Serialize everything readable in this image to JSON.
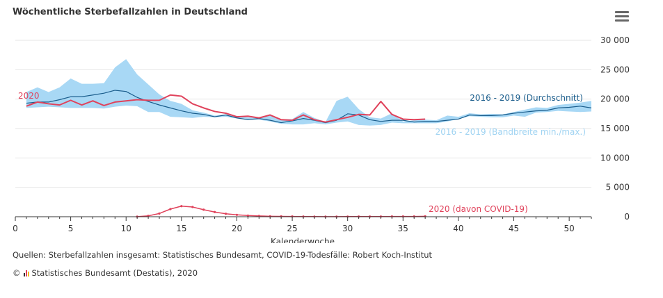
{
  "header": {
    "title": "Wöchentliche Sterbefallzahlen in Deutschland",
    "menu_icon": "hamburger-menu-icon"
  },
  "footer": {
    "source": "Quellen: Sterbefallzahlen insgesamt: Statistisches Bundesamt, COVID-19-Todesfälle: Robert Koch-Institut",
    "copyright_symbol": "©",
    "copyright_text": "Statistisches Bundesamt (Destatis), 2020",
    "logo_icon": "destatis-logo-icon"
  },
  "colors": {
    "series_2020": "#e0425b",
    "average": "#1a5d8c",
    "band": "#a8d8f5",
    "band_label": "#9fd3f2"
  },
  "chart_data": {
    "type": "line",
    "title": "Wöchentliche Sterbefallzahlen in Deutschland",
    "xlabel": "Kalenderwoche",
    "ylabel": "",
    "xlim": [
      0,
      52
    ],
    "ylim": [
      0,
      30000
    ],
    "xticks": [
      0,
      5,
      10,
      15,
      20,
      25,
      30,
      35,
      40,
      45,
      50
    ],
    "yticks": [
      0,
      5000,
      10000,
      15000,
      20000,
      25000,
      30000
    ],
    "ytick_labels": [
      "0",
      "5 000",
      "10 000",
      "15 000",
      "20 000",
      "25 000",
      "30 000"
    ],
    "yaxis_side": "right",
    "grid": "horizontal",
    "band": {
      "name": "2016 - 2019 (Bandbreite min./max.)",
      "x": [
        1,
        2,
        3,
        4,
        5,
        6,
        7,
        8,
        9,
        10,
        11,
        12,
        13,
        14,
        15,
        16,
        17,
        18,
        19,
        20,
        21,
        22,
        23,
        24,
        25,
        26,
        27,
        28,
        29,
        30,
        31,
        32,
        33,
        34,
        35,
        36,
        37,
        38,
        39,
        40,
        41,
        42,
        43,
        44,
        45,
        46,
        47,
        48,
        49,
        50,
        51,
        52
      ],
      "high": [
        21200,
        22000,
        21200,
        22000,
        23500,
        22600,
        22600,
        22700,
        25400,
        26800,
        24200,
        22500,
        20800,
        19700,
        19200,
        18100,
        17700,
        17200,
        17400,
        17100,
        16900,
        16800,
        17200,
        16600,
        16600,
        17800,
        16800,
        16100,
        19700,
        20400,
        18300,
        16900,
        16700,
        17600,
        16200,
        16400,
        16500,
        16400,
        17200,
        17000,
        17600,
        17400,
        17500,
        17400,
        17800,
        18200,
        18600,
        18500,
        19000,
        19200,
        19400,
        19700
      ],
      "low": [
        18500,
        18600,
        18700,
        18600,
        18500,
        18500,
        18500,
        18400,
        18700,
        18900,
        18800,
        17800,
        17800,
        17000,
        16900,
        16800,
        17000,
        16900,
        17000,
        16700,
        16500,
        16500,
        16200,
        15800,
        15700,
        15700,
        15900,
        15700,
        16000,
        16200,
        15600,
        15500,
        15600,
        16000,
        15900,
        15900,
        15900,
        15900,
        16200,
        16600,
        17100,
        17000,
        16900,
        16900,
        17200,
        17000,
        17700,
        17800,
        18000,
        17900,
        17800,
        17900
      ]
    },
    "series": [
      {
        "name": "2016 - 2019 (Durchschnitt)",
        "x": [
          1,
          2,
          3,
          4,
          5,
          6,
          7,
          8,
          9,
          10,
          11,
          12,
          13,
          14,
          15,
          16,
          17,
          18,
          19,
          20,
          21,
          22,
          23,
          24,
          25,
          26,
          27,
          28,
          29,
          30,
          31,
          32,
          33,
          34,
          35,
          36,
          37,
          38,
          39,
          40,
          41,
          42,
          43,
          44,
          45,
          46,
          47,
          48,
          49,
          50,
          51,
          52
        ],
        "values": [
          19300,
          19500,
          19500,
          19900,
          20400,
          20400,
          20700,
          21000,
          21500,
          21300,
          20300,
          19600,
          19000,
          18500,
          18000,
          17600,
          17400,
          17000,
          17300,
          16800,
          16500,
          16700,
          16400,
          16000,
          16300,
          16700,
          16400,
          16000,
          16400,
          17500,
          17300,
          16500,
          16200,
          16400,
          16400,
          16100,
          16200,
          16200,
          16400,
          16600,
          17300,
          17200,
          17200,
          17300,
          17600,
          17800,
          18000,
          18100,
          18500,
          18600,
          18800,
          18500
        ]
      },
      {
        "name": "2020",
        "x": [
          1,
          2,
          3,
          4,
          5,
          6,
          7,
          8,
          9,
          10,
          11,
          12,
          13,
          14,
          15,
          16,
          17,
          18,
          19,
          20,
          21,
          22,
          23,
          24,
          25,
          26,
          27,
          28,
          29,
          30,
          31,
          32,
          33,
          34,
          35,
          36,
          37
        ],
        "values": [
          18800,
          19500,
          19200,
          19000,
          19800,
          19000,
          19700,
          18900,
          19500,
          19700,
          19900,
          19800,
          19800,
          20700,
          20500,
          19200,
          18500,
          17900,
          17600,
          17000,
          17100,
          16800,
          17300,
          16500,
          16400,
          17300,
          16500,
          16100,
          16500,
          16900,
          17400,
          17300,
          19600,
          17400,
          16600,
          16500,
          16600
        ]
      },
      {
        "name": "2020 (davon COVID-19)",
        "x": [
          11,
          12,
          13,
          14,
          15,
          16,
          17,
          18,
          19,
          20,
          21,
          22,
          23,
          24,
          25,
          26,
          27,
          28,
          29,
          30,
          31,
          32,
          33,
          34,
          35,
          36,
          37
        ],
        "values": [
          20,
          150,
          550,
          1300,
          1800,
          1650,
          1200,
          800,
          500,
          320,
          200,
          130,
          80,
          60,
          40,
          30,
          25,
          20,
          20,
          25,
          30,
          30,
          35,
          40,
          40,
          50,
          80
        ]
      }
    ],
    "labels": {
      "average": "2016 - 2019 (Durchschnitt)",
      "band": "2016 - 2019 (Bandbreite min./max.)",
      "series_2020": "2020",
      "covid": "2020 (davon COVID-19)"
    }
  }
}
